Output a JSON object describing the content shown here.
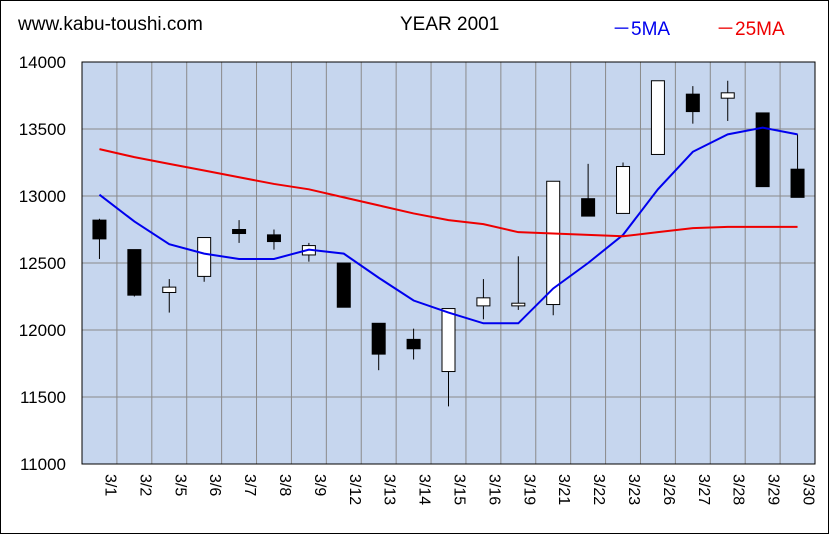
{
  "header": {
    "site": "www.kabu-toushi.com",
    "title": "YEAR 2001",
    "legend_5ma": "－5MA",
    "legend_25ma": "－25MA"
  },
  "colors": {
    "plot_bg": "#c6d6ee",
    "grid": "#8a8a8a",
    "ma5": "#0000ee",
    "ma25": "#ee0000",
    "up_body": "#ffffff",
    "down_body": "#000000"
  },
  "chart_data": {
    "type": "candlestick",
    "title": "YEAR 2001",
    "ylim": [
      11000,
      14000
    ],
    "yticks": [
      11000,
      11500,
      12000,
      12500,
      13000,
      13500,
      14000
    ],
    "grid": true,
    "legend_placement": "top-right",
    "categories": [
      "3/1",
      "3/2",
      "3/5",
      "3/6",
      "3/7",
      "3/8",
      "3/9",
      "3/12",
      "3/13",
      "3/14",
      "3/15",
      "3/16",
      "3/19",
      "3/21",
      "3/22",
      "3/23",
      "3/26",
      "3/27",
      "3/28",
      "3/29",
      "3/30"
    ],
    "candles": [
      {
        "open": 12820,
        "high": 12830,
        "low": 12530,
        "close": 12680
      },
      {
        "open": 12600,
        "high": 12600,
        "low": 12250,
        "close": 12260
      },
      {
        "open": 12280,
        "high": 12380,
        "low": 12130,
        "close": 12320
      },
      {
        "open": 12400,
        "high": 12690,
        "low": 12360,
        "close": 12690
      },
      {
        "open": 12750,
        "high": 12820,
        "low": 12650,
        "close": 12720
      },
      {
        "open": 12710,
        "high": 12750,
        "low": 12600,
        "close": 12660
      },
      {
        "open": 12560,
        "high": 12650,
        "low": 12510,
        "close": 12630
      },
      {
        "open": 12500,
        "high": 12500,
        "low": 12170,
        "close": 12170
      },
      {
        "open": 12050,
        "high": 12050,
        "low": 11700,
        "close": 11820
      },
      {
        "open": 11930,
        "high": 12010,
        "low": 11780,
        "close": 11860
      },
      {
        "open": 11690,
        "high": 12160,
        "low": 11430,
        "close": 12160
      },
      {
        "open": 12180,
        "high": 12380,
        "low": 12080,
        "close": 12240
      },
      {
        "open": 12180,
        "high": 12550,
        "low": 12150,
        "close": 12200
      },
      {
        "open": 12190,
        "high": 13110,
        "low": 12110,
        "close": 13110
      },
      {
        "open": 12980,
        "high": 13240,
        "low": 12850,
        "close": 12850
      },
      {
        "open": 12870,
        "high": 13250,
        "low": 12870,
        "close": 13220
      },
      {
        "open": 13310,
        "high": 13860,
        "low": 13310,
        "close": 13860
      },
      {
        "open": 13760,
        "high": 13820,
        "low": 13540,
        "close": 13630
      },
      {
        "open": 13730,
        "high": 13860,
        "low": 13560,
        "close": 13770
      },
      {
        "open": 13620,
        "high": 13620,
        "low": 13070,
        "close": 13070
      },
      {
        "open": 13200,
        "high": 13460,
        "low": 12990,
        "close": 12990
      }
    ],
    "series": [
      {
        "name": "5MA",
        "color": "#0000ee",
        "values": [
          13010,
          12810,
          12640,
          12570,
          12530,
          12530,
          12600,
          12570,
          12390,
          12220,
          12130,
          12050,
          12050,
          12310,
          12500,
          12710,
          13050,
          13330,
          13460,
          13510,
          13460
        ]
      },
      {
        "name": "25MA",
        "color": "#ee0000",
        "values": [
          13350,
          13290,
          13240,
          13190,
          13140,
          13090,
          13050,
          12990,
          12930,
          12870,
          12820,
          12790,
          12730,
          12720,
          12710,
          12700,
          12730,
          12760,
          12770,
          12770,
          12770
        ]
      }
    ]
  }
}
